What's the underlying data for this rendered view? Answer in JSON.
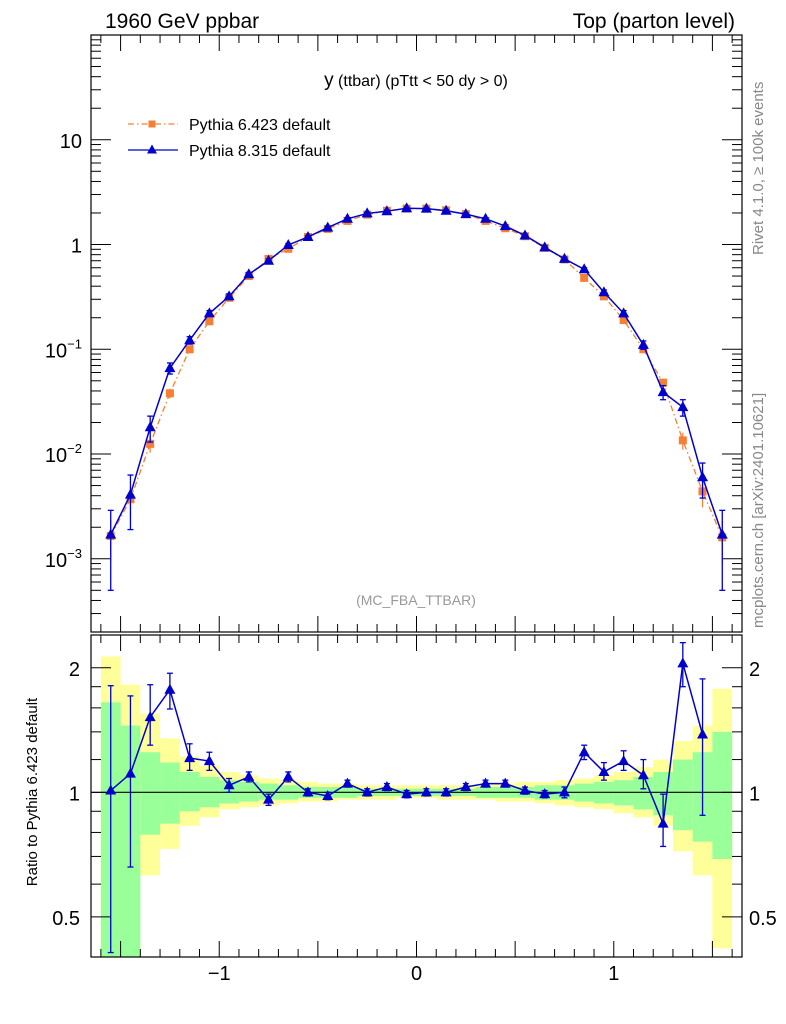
{
  "header": {
    "left_title": "1960 GeV ppbar",
    "right_title": "Top (parton level)"
  },
  "side_labels": {
    "rivet": "Rivet 4.1.0, ≥ 100k events",
    "mcplots": "mcplots.cern.ch [arXiv:2401.10621]"
  },
  "chart_data": [
    {
      "type": "line",
      "panel": "main",
      "title": "y (ttbar) (pTtt < 50 dy > 0)",
      "title_main": "y",
      "title_rest": " (ttbar) (pTtt < 50 dy > 0)",
      "watermark": "(MC_FBA_TTBAR)",
      "xlabel": "",
      "ylabel": "",
      "yscale": "log",
      "xlim": [
        -1.65,
        1.65
      ],
      "ylim": [
        0.0002,
        100
      ],
      "y_ticks": [
        {
          "value": 0.001,
          "base": "10",
          "exp": "−3"
        },
        {
          "value": 0.01,
          "base": "10",
          "exp": "−2"
        },
        {
          "value": 0.1,
          "base": "10",
          "exp": "−1"
        },
        {
          "value": 1,
          "base": "1",
          "exp": ""
        },
        {
          "value": 10,
          "base": "10",
          "exp": ""
        }
      ],
      "legend_position": "top-left",
      "x": [
        -1.55,
        -1.45,
        -1.35,
        -1.25,
        -1.15,
        -1.05,
        -0.95,
        -0.85,
        -0.75,
        -0.65,
        -0.55,
        -0.45,
        -0.35,
        -0.25,
        -0.15,
        -0.05,
        0.05,
        0.15,
        0.25,
        0.35,
        0.45,
        0.55,
        0.65,
        0.75,
        0.85,
        0.95,
        1.05,
        1.15,
        1.25,
        1.35,
        1.45,
        1.55
      ],
      "series": [
        {
          "name": "Pythia 6.423 default",
          "color": "#f57f33",
          "marker": "square",
          "values": [
            0.00165,
            0.0037,
            0.0125,
            0.038,
            0.1,
            0.185,
            0.31,
            0.5,
            0.73,
            0.91,
            1.18,
            1.41,
            1.68,
            1.93,
            2.1,
            2.2,
            2.2,
            2.12,
            1.95,
            1.68,
            1.43,
            1.2,
            0.93,
            0.72,
            0.48,
            0.32,
            0.19,
            0.1,
            0.048,
            0.0135,
            0.0044,
            0.0016
          ],
          "errors": [
            0.0007,
            0.0012,
            0.0022,
            0.004,
            0.008,
            0.012,
            0.016,
            0.02,
            0.025,
            0.03,
            0.035,
            0.04,
            0.045,
            0.05,
            0.05,
            0.05,
            0.05,
            0.05,
            0.05,
            0.045,
            0.04,
            0.035,
            0.03,
            0.025,
            0.02,
            0.016,
            0.012,
            0.008,
            0.004,
            0.0025,
            0.0013,
            0.0007
          ]
        },
        {
          "name": "Pythia 8.315 default",
          "color": "#0000cc",
          "marker": "triangle",
          "values": [
            0.0017,
            0.0041,
            0.018,
            0.066,
            0.122,
            0.22,
            0.32,
            0.52,
            0.7,
            0.99,
            1.18,
            1.45,
            1.76,
            1.98,
            2.08,
            2.22,
            2.2,
            2.1,
            1.95,
            1.76,
            1.5,
            1.22,
            0.94,
            0.73,
            0.58,
            0.35,
            0.22,
            0.11,
            0.039,
            0.028,
            0.006,
            0.0017
          ]
        }
      ],
      "y_errors_p8": [
        0.0012,
        0.0022,
        0.005,
        0.008,
        0.01,
        0.014,
        0.018,
        0.022,
        0.027,
        0.032,
        0.036,
        0.041,
        0.046,
        0.05,
        0.05,
        0.05,
        0.05,
        0.05,
        0.05,
        0.046,
        0.041,
        0.036,
        0.032,
        0.027,
        0.022,
        0.018,
        0.014,
        0.01,
        0.006,
        0.005,
        0.0022,
        0.0012
      ]
    },
    {
      "type": "line",
      "panel": "ratio",
      "ylabel": "Ratio to Pythia 6.423 default",
      "yscale": "log",
      "xlim": [
        -1.65,
        1.65
      ],
      "ylim": [
        0.4,
        2.4
      ],
      "y_ticks": [
        {
          "value": 0.5,
          "label": "0.5"
        },
        {
          "value": 1,
          "label": "1"
        },
        {
          "value": 2,
          "label": "2"
        }
      ],
      "x_ticks": [
        {
          "value": -1,
          "label": "−1"
        },
        {
          "value": 0,
          "label": "0"
        },
        {
          "value": 1,
          "label": "1"
        }
      ],
      "x": [
        -1.55,
        -1.45,
        -1.35,
        -1.25,
        -1.15,
        -1.05,
        -0.95,
        -0.85,
        -0.75,
        -0.65,
        -0.55,
        -0.45,
        -0.35,
        -0.25,
        -0.15,
        -0.05,
        0.05,
        0.15,
        0.25,
        0.35,
        0.45,
        0.55,
        0.65,
        0.75,
        0.85,
        0.95,
        1.05,
        1.15,
        1.25,
        1.35,
        1.45,
        1.55
      ],
      "ratio_values": [
        1.01,
        1.11,
        1.52,
        1.77,
        1.21,
        1.19,
        1.04,
        1.09,
        0.96,
        1.09,
        1.0,
        0.98,
        1.05,
        1.0,
        1.03,
        0.99,
        1.0,
        1.0,
        1.03,
        1.05,
        1.05,
        1.01,
        0.99,
        1.0,
        1.25,
        1.12,
        1.19,
        1.1,
        0.84,
        2.05,
        1.38,
        null
      ],
      "ratio_err_low": [
        0.6,
        0.45,
        0.22,
        0.18,
        0.08,
        0.06,
        0.04,
        0.03,
        0.03,
        0.03,
        0.02,
        0.02,
        0.02,
        0.02,
        0.02,
        0.02,
        0.02,
        0.02,
        0.02,
        0.02,
        0.02,
        0.02,
        0.02,
        0.03,
        0.05,
        0.05,
        0.06,
        0.08,
        0.1,
        0.25,
        0.5,
        null
      ],
      "ratio_err_high": [
        0.8,
        0.6,
        0.3,
        0.17,
        0.1,
        0.06,
        0.04,
        0.03,
        0.03,
        0.03,
        0.02,
        0.02,
        0.02,
        0.02,
        0.02,
        0.02,
        0.02,
        0.02,
        0.02,
        0.02,
        0.02,
        0.02,
        0.02,
        0.03,
        0.05,
        0.06,
        0.07,
        0.1,
        0.15,
        0.25,
        0.5,
        null
      ],
      "band_green": [
        [
          0.37,
          1.65
        ],
        [
          0.37,
          1.45
        ],
        [
          0.79,
          1.25
        ],
        [
          0.84,
          1.18
        ],
        [
          0.9,
          1.12
        ],
        [
          0.92,
          1.09
        ],
        [
          0.94,
          1.07
        ],
        [
          0.95,
          1.06
        ],
        [
          0.96,
          1.05
        ],
        [
          0.96,
          1.04
        ],
        [
          0.97,
          1.03
        ],
        [
          0.97,
          1.03
        ],
        [
          0.97,
          1.03
        ],
        [
          0.98,
          1.02
        ],
        [
          0.98,
          1.02
        ],
        [
          0.98,
          1.02
        ],
        [
          0.98,
          1.02
        ],
        [
          0.98,
          1.02
        ],
        [
          0.98,
          1.02
        ],
        [
          0.97,
          1.03
        ],
        [
          0.97,
          1.03
        ],
        [
          0.97,
          1.03
        ],
        [
          0.96,
          1.04
        ],
        [
          0.96,
          1.04
        ],
        [
          0.95,
          1.05
        ],
        [
          0.94,
          1.06
        ],
        [
          0.93,
          1.07
        ],
        [
          0.91,
          1.09
        ],
        [
          0.88,
          1.12
        ],
        [
          0.81,
          1.2
        ],
        [
          0.76,
          1.25
        ],
        [
          0.69,
          1.4
        ]
      ],
      "band_yellow": [
        [
          0.35,
          2.13
        ],
        [
          0.35,
          1.82
        ],
        [
          0.63,
          1.55
        ],
        [
          0.73,
          1.35
        ],
        [
          0.83,
          1.22
        ],
        [
          0.87,
          1.16
        ],
        [
          0.91,
          1.12
        ],
        [
          0.92,
          1.1
        ],
        [
          0.93,
          1.08
        ],
        [
          0.94,
          1.07
        ],
        [
          0.95,
          1.06
        ],
        [
          0.95,
          1.05
        ],
        [
          0.96,
          1.05
        ],
        [
          0.96,
          1.04
        ],
        [
          0.96,
          1.04
        ],
        [
          0.97,
          1.04
        ],
        [
          0.97,
          1.04
        ],
        [
          0.96,
          1.04
        ],
        [
          0.96,
          1.04
        ],
        [
          0.96,
          1.05
        ],
        [
          0.95,
          1.05
        ],
        [
          0.95,
          1.06
        ],
        [
          0.94,
          1.06
        ],
        [
          0.93,
          1.07
        ],
        [
          0.92,
          1.08
        ],
        [
          0.91,
          1.1
        ],
        [
          0.89,
          1.12
        ],
        [
          0.87,
          1.15
        ],
        [
          0.83,
          1.2
        ],
        [
          0.72,
          1.33
        ],
        [
          0.63,
          1.45
        ],
        [
          0.42,
          1.78
        ]
      ]
    }
  ]
}
